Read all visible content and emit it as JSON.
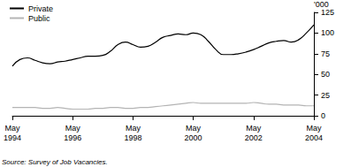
{
  "chart_data": {
    "type": "line",
    "source": "Source: Survey of Job Vacancies.",
    "ylabel": "'000",
    "categories": [
      "May 1994",
      null,
      null,
      null,
      null,
      null,
      null,
      null,
      "May 1996",
      null,
      null,
      null,
      null,
      null,
      null,
      null,
      "May 1998",
      null,
      null,
      null,
      null,
      null,
      null,
      null,
      "May 2000",
      null,
      null,
      null,
      null,
      null,
      null,
      null,
      "May 2002",
      null,
      null,
      null,
      null,
      null,
      null,
      null,
      "May 2004"
    ],
    "series": [
      {
        "name": "Private",
        "color": "#000000",
        "values": [
          60,
          68,
          70,
          67,
          64,
          63,
          65,
          66,
          68,
          70,
          72,
          72,
          73,
          78,
          86,
          89,
          86,
          83,
          84,
          89,
          95,
          97,
          99,
          98,
          100,
          98,
          90,
          80,
          74,
          74,
          75,
          77,
          80,
          84,
          88,
          90,
          91,
          89,
          92,
          100,
          110
        ]
      },
      {
        "name": "Public",
        "color": "#b4b4b4",
        "values": [
          10,
          10,
          10,
          10,
          9,
          9,
          10,
          9,
          8,
          8,
          8,
          9,
          9,
          10,
          10,
          9,
          9,
          10,
          10,
          11,
          12,
          13,
          14,
          15,
          16,
          15,
          15,
          15,
          15,
          15,
          15,
          15,
          16,
          15,
          14,
          14,
          13,
          13,
          13,
          12,
          12
        ]
      }
    ],
    "ylim": [
      0,
      125
    ],
    "yticks": [
      0,
      25,
      50,
      75,
      100,
      125
    ],
    "grid": false,
    "legend": "top-left"
  }
}
